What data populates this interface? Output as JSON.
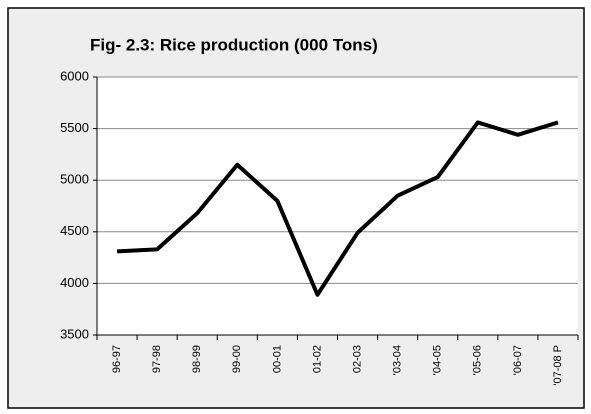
{
  "chart_data": {
    "type": "line",
    "title": "Fig- 2.3: Rice production (000 Tons)",
    "categories": [
      "96-97",
      "97-98",
      "98-99",
      "99-00",
      "00-01",
      "01-02",
      "02-03",
      "'03-04",
      "'04-05",
      "'05-06",
      "'06-07",
      "'07-08 P"
    ],
    "values": [
      4310,
      4330,
      4680,
      5150,
      4800,
      3890,
      4490,
      4850,
      5030,
      5560,
      5440,
      5560
    ],
    "color": "#000000",
    "ylim": [
      3500,
      6000
    ],
    "yticks": [
      3500,
      4000,
      4500,
      5000,
      5500,
      6000
    ],
    "grid": true
  }
}
